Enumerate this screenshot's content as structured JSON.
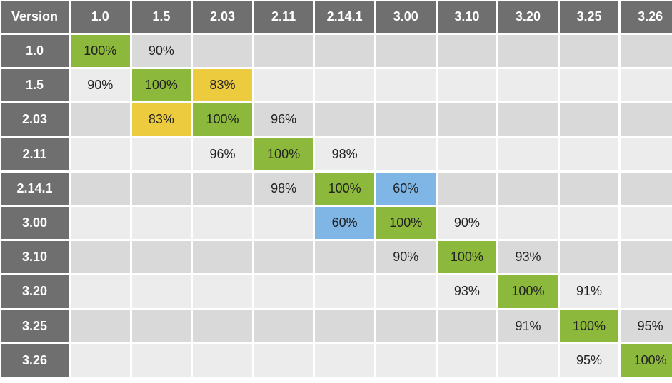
{
  "chart_data": {
    "type": "heatmap",
    "corner_label": "Version",
    "columns": [
      "1.0",
      "1.5",
      "2.03",
      "2.11",
      "2.14.1",
      "3.00",
      "3.10",
      "3.20",
      "3.25",
      "3.26"
    ],
    "rows": [
      {
        "label": "1.0",
        "cells": [
          "100%",
          "90%",
          "",
          "",
          "",
          "",
          "",
          "",
          "",
          ""
        ]
      },
      {
        "label": "1.5",
        "cells": [
          "90%",
          "100%",
          "83%",
          "",
          "",
          "",
          "",
          "",
          "",
          ""
        ]
      },
      {
        "label": "2.03",
        "cells": [
          "",
          "83%",
          "100%",
          "96%",
          "",
          "",
          "",
          "",
          "",
          ""
        ]
      },
      {
        "label": "2.11",
        "cells": [
          "",
          "",
          "96%",
          "100%",
          "98%",
          "",
          "",
          "",
          "",
          ""
        ]
      },
      {
        "label": "2.14.1",
        "cells": [
          "",
          "",
          "",
          "98%",
          "100%",
          "60%",
          "",
          "",
          "",
          ""
        ]
      },
      {
        "label": "3.00",
        "cells": [
          "",
          "",
          "",
          "",
          "60%",
          "100%",
          "90%",
          "",
          "",
          ""
        ]
      },
      {
        "label": "3.10",
        "cells": [
          "",
          "",
          "",
          "",
          "",
          "90%",
          "100%",
          "93%",
          "",
          ""
        ]
      },
      {
        "label": "3.20",
        "cells": [
          "",
          "",
          "",
          "",
          "",
          "",
          "93%",
          "100%",
          "91%",
          ""
        ]
      },
      {
        "label": "3.25",
        "cells": [
          "",
          "",
          "",
          "",
          "",
          "",
          "",
          "91%",
          "100%",
          "95%"
        ]
      },
      {
        "label": "3.26",
        "cells": [
          "",
          "",
          "",
          "",
          "",
          "",
          "",
          "",
          "95%",
          "100%"
        ]
      }
    ],
    "highlight_colors": {
      "100%": "#8cb93b",
      "83%": "#eccb3f",
      "60%": "#7fb6e6"
    },
    "header_color": "#6f6f6f",
    "row_colors": [
      "#d9d9d9",
      "#ececec"
    ]
  }
}
